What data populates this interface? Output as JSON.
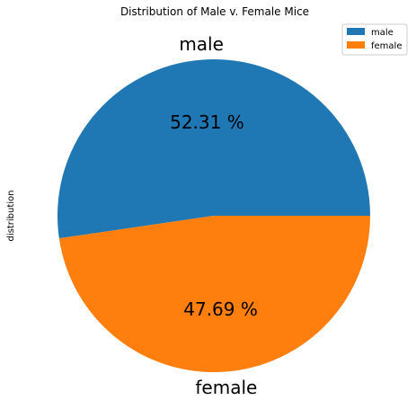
{
  "chart_data": {
    "type": "pie",
    "title": "Distribution of Male v. Female Mice",
    "ylabel": "distribution",
    "labels": [
      "male",
      "female"
    ],
    "values": [
      52.31,
      47.69
    ],
    "percent_labels": [
      "52.31 %",
      "47.69 %"
    ],
    "colors": [
      "#1f77b4",
      "#ff7f0e"
    ],
    "start_angle_deg": 0,
    "direction": "counterclockwise",
    "legend": {
      "placement": "top-right",
      "entries": [
        "male",
        "female"
      ]
    }
  }
}
